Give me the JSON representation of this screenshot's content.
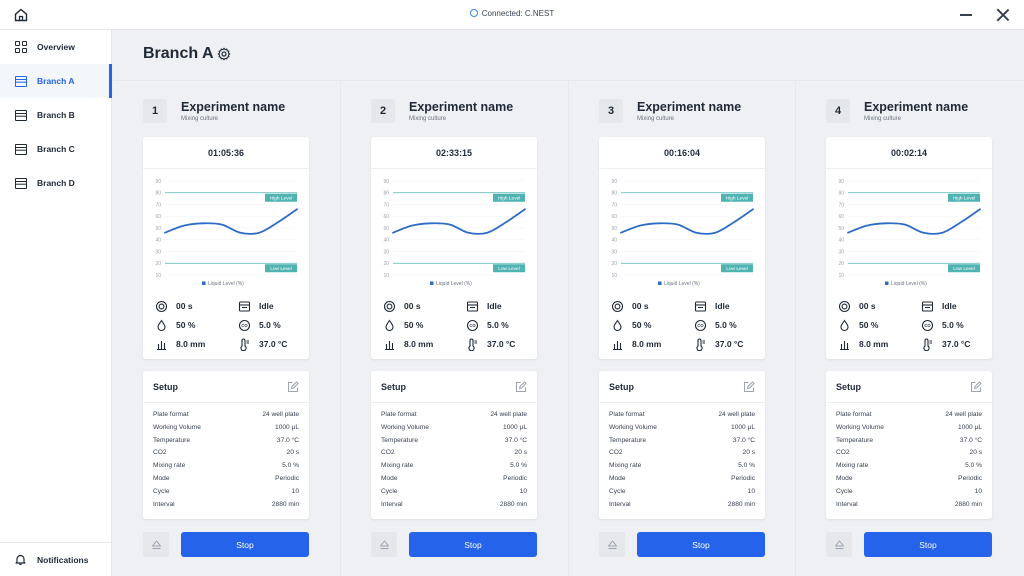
{
  "window": {
    "connection": "Connected: C.NEST"
  },
  "sidebar": {
    "items": [
      {
        "label": "Overview",
        "icon": "grid-icon"
      },
      {
        "label": "Branch A",
        "icon": "list-icon",
        "active": true
      },
      {
        "label": "Branch B",
        "icon": "list-icon"
      },
      {
        "label": "Branch C",
        "icon": "list-icon"
      },
      {
        "label": "Branch D",
        "icon": "list-icon"
      }
    ],
    "notifications": "Notifications"
  },
  "page": {
    "title": "Branch A"
  },
  "chart_template": {
    "type": "line",
    "yticks": [
      10,
      20,
      30,
      40,
      50,
      60,
      70,
      80,
      90
    ],
    "ylim": [
      10,
      90
    ],
    "high_level": 80,
    "low_level": 20,
    "high_label": "High Level",
    "low_label": "Low Level",
    "legend": "Liquid Level (%)",
    "series_color": "#2d6cc6",
    "threshold_color": "#4fb3b1"
  },
  "chart_data": [
    {
      "type": "line",
      "series": [
        {
          "name": "Liquid Level (%)",
          "values": [
            46,
            52,
            54,
            53,
            46,
            46,
            55,
            66
          ]
        }
      ],
      "ylim": [
        10,
        90
      ],
      "high_level": 80,
      "low_level": 20
    },
    {
      "type": "line",
      "series": [
        {
          "name": "Liquid Level (%)",
          "values": [
            46,
            52,
            54,
            53,
            46,
            46,
            55,
            66
          ]
        }
      ],
      "ylim": [
        10,
        90
      ],
      "high_level": 80,
      "low_level": 20
    },
    {
      "type": "line",
      "series": [
        {
          "name": "Liquid Level (%)",
          "values": [
            46,
            52,
            54,
            53,
            46,
            46,
            55,
            66
          ]
        }
      ],
      "ylim": [
        10,
        90
      ],
      "high_level": 80,
      "low_level": 20
    },
    {
      "type": "line",
      "series": [
        {
          "name": "Liquid Level (%)",
          "values": [
            46,
            52,
            54,
            53,
            46,
            46,
            55,
            66
          ]
        }
      ],
      "ylim": [
        10,
        90
      ],
      "high_level": 80,
      "low_level": 20
    }
  ],
  "experiments": [
    {
      "number": "1",
      "name": "Experiment name",
      "subtitle": "Mixing culture",
      "timer": "01:05:36",
      "stats": {
        "time": "00 s",
        "state": "Idle",
        "humidity": "50 %",
        "co2": "5.0 %",
        "height": "8.0 mm",
        "temperature": "37.0 °C"
      },
      "setup_title": "Setup",
      "setup": [
        {
          "label": "Plate format",
          "value": "24 well plate"
        },
        {
          "label": "Working Volume",
          "value": "1000 μL"
        },
        {
          "label": "Temperature",
          "value": "37.0 °C"
        },
        {
          "label": "CO2",
          "value": "20 s"
        },
        {
          "label": "Mixing rate",
          "value": "5.0 %"
        },
        {
          "label": "Mode",
          "value": "Periodic"
        },
        {
          "label": "Cycle",
          "value": "10"
        },
        {
          "label": "Interval",
          "value": "2880 min"
        }
      ],
      "stop_label": "Stop"
    },
    {
      "number": "2",
      "name": "Experiment name",
      "subtitle": "Mixing culture",
      "timer": "02:33:15",
      "stats": {
        "time": "00 s",
        "state": "Idle",
        "humidity": "50 %",
        "co2": "5.0 %",
        "height": "8.0 mm",
        "temperature": "37.0 °C"
      },
      "setup_title": "Setup",
      "setup": [
        {
          "label": "Plate format",
          "value": "24 well plate"
        },
        {
          "label": "Working Volume",
          "value": "1000 μL"
        },
        {
          "label": "Temperature",
          "value": "37.0 °C"
        },
        {
          "label": "CO2",
          "value": "20 s"
        },
        {
          "label": "Mixing rate",
          "value": "5.0 %"
        },
        {
          "label": "Mode",
          "value": "Periodic"
        },
        {
          "label": "Cycle",
          "value": "10"
        },
        {
          "label": "Interval",
          "value": "2880 min"
        }
      ],
      "stop_label": "Stop"
    },
    {
      "number": "3",
      "name": "Experiment name",
      "subtitle": "Mixing culture",
      "timer": "00:16:04",
      "stats": {
        "time": "00 s",
        "state": "Idle",
        "humidity": "50 %",
        "co2": "5.0 %",
        "height": "8.0 mm",
        "temperature": "37.0 °C"
      },
      "setup_title": "Setup",
      "setup": [
        {
          "label": "Plate format",
          "value": "24 well plate"
        },
        {
          "label": "Working Volume",
          "value": "1000 μL"
        },
        {
          "label": "Temperature",
          "value": "37.0 °C"
        },
        {
          "label": "CO2",
          "value": "20 s"
        },
        {
          "label": "Mixing rate",
          "value": "5.0 %"
        },
        {
          "label": "Mode",
          "value": "Periodic"
        },
        {
          "label": "Cycle",
          "value": "10"
        },
        {
          "label": "Interval",
          "value": "2880 min"
        }
      ],
      "stop_label": "Stop"
    },
    {
      "number": "4",
      "name": "Experiment name",
      "subtitle": "Mixing culture",
      "timer": "00:02:14",
      "stats": {
        "time": "00 s",
        "state": "Idle",
        "humidity": "50 %",
        "co2": "5.0 %",
        "height": "8.0 mm",
        "temperature": "37.0 °C"
      },
      "setup_title": "Setup",
      "setup": [
        {
          "label": "Plate format",
          "value": "24 well plate"
        },
        {
          "label": "Working Volume",
          "value": "1000 μL"
        },
        {
          "label": "Temperature",
          "value": "37.0 °C"
        },
        {
          "label": "CO2",
          "value": "20 s"
        },
        {
          "label": "Mixing rate",
          "value": "5.0 %"
        },
        {
          "label": "Mode",
          "value": "Periodic"
        },
        {
          "label": "Cycle",
          "value": "10"
        },
        {
          "label": "Interval",
          "value": "2880 min"
        }
      ],
      "stop_label": "Stop"
    }
  ]
}
